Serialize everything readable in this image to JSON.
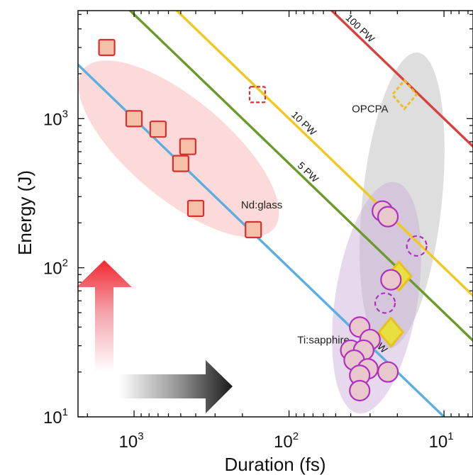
{
  "chart_data": {
    "type": "scatter",
    "xlabel": "Duration (fs)",
    "ylabel": "Energy (J)",
    "x_scale": "log",
    "x_reversed": true,
    "y_scale": "log",
    "xlim": [
      2300,
      6.5
    ],
    "ylim": [
      10,
      5300
    ],
    "x_ticks": [
      {
        "value": 1000,
        "base": "10",
        "exp": "3"
      },
      {
        "value": 100,
        "base": "10",
        "exp": "2"
      },
      {
        "value": 10,
        "base": "10",
        "exp": "1"
      }
    ],
    "y_ticks": [
      {
        "value": 1000,
        "base": "10",
        "exp": "3"
      },
      {
        "value": 100,
        "base": "10",
        "exp": "2"
      },
      {
        "value": 10,
        "base": "10",
        "exp": "1"
      }
    ],
    "power_lines": [
      {
        "label": "1 PW",
        "power_W": 1000000000000000.0,
        "color": "#5aaee0"
      },
      {
        "label": "5 PW",
        "power_W": 5000000000000000.0,
        "color": "#6a9a2a"
      },
      {
        "label": "10 PW",
        "power_W": 1e+16,
        "color": "#f0c820"
      },
      {
        "label": "100 PW",
        "power_W": 1e+17,
        "color": "#d84040"
      }
    ],
    "regions": [
      {
        "label": "Nd:glass",
        "color": "#f8b8b8"
      },
      {
        "label": "OPCPA",
        "color": "#bcbcbc"
      },
      {
        "label": "Ti:sapphire",
        "color": "#c8a8d8"
      }
    ],
    "series": [
      {
        "name": "Nd:glass",
        "marker": "square",
        "style": "filled",
        "color": "#d83030",
        "fill": "#f5c0a8",
        "points": [
          [
            1500,
            3000
          ],
          [
            1000,
            1000
          ],
          [
            700,
            850
          ],
          [
            450,
            650
          ],
          [
            500,
            500
          ],
          [
            400,
            250
          ],
          [
            170,
            180
          ]
        ]
      },
      {
        "name": "Nd:glass",
        "marker": "square",
        "style": "dashed",
        "color": "#d83030",
        "points": [
          [
            160,
            1450
          ]
        ]
      },
      {
        "name": "OPCPA",
        "marker": "diamond",
        "style": "dashed",
        "color": "#e8c020",
        "points": [
          [
            18,
            1450
          ]
        ]
      },
      {
        "name": "OPCPA",
        "marker": "diamond",
        "style": "filled",
        "color": "#e8c020",
        "fill": "#e8e040",
        "points": [
          [
            19.5,
            88
          ],
          [
            22,
            37
          ]
        ]
      },
      {
        "name": "Ti:sapphire",
        "marker": "circle",
        "style": "filled",
        "color": "#b030c0",
        "fill": "#e8c8cc",
        "points": [
          [
            25,
            240
          ],
          [
            23,
            220
          ],
          [
            35,
            40
          ],
          [
            30,
            33
          ],
          [
            40,
            28
          ],
          [
            33,
            28
          ],
          [
            38,
            24
          ],
          [
            31,
            21
          ],
          [
            23,
            20
          ],
          [
            35,
            19
          ],
          [
            35,
            15
          ],
          [
            22,
            83
          ]
        ]
      },
      {
        "name": "Ti:sapphire",
        "marker": "circle",
        "style": "dashed",
        "color": "#b030c0",
        "points": [
          [
            15,
            140
          ],
          [
            24,
            58
          ]
        ]
      }
    ]
  }
}
